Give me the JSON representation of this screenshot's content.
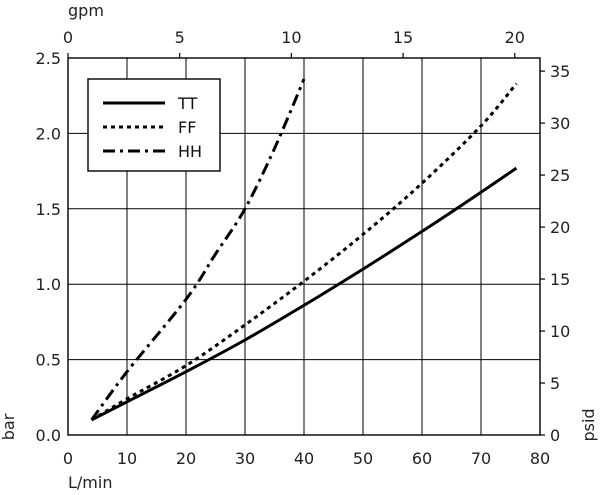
{
  "chart_data": {
    "type": "line",
    "x_bottom": {
      "label": "L/min",
      "ticks": [
        0,
        10,
        20,
        30,
        40,
        50,
        60,
        70,
        80
      ],
      "range": [
        0,
        80
      ]
    },
    "x_top": {
      "label": "gpm",
      "ticks": [
        0,
        5,
        10,
        15,
        20
      ],
      "range": [
        0,
        21.13
      ]
    },
    "y_left": {
      "label": "bar",
      "ticks": [
        "0.0",
        "0.5",
        "1.0",
        "1.5",
        "2.0",
        "2.5"
      ],
      "range": [
        0,
        2.5
      ]
    },
    "y_right": {
      "label": "psid",
      "ticks": [
        0,
        5,
        10,
        15,
        20,
        25,
        30,
        35
      ],
      "range": [
        0,
        36.26
      ]
    },
    "grid": true,
    "legend_position": "top-left",
    "series": [
      {
        "name": "TT",
        "style": "solid",
        "x": [
          4,
          10,
          20,
          30,
          40,
          50,
          60,
          70,
          76
        ],
        "y": [
          0.1,
          0.22,
          0.42,
          0.63,
          0.86,
          1.1,
          1.35,
          1.61,
          1.77
        ]
      },
      {
        "name": "FF",
        "style": "dotted",
        "x": [
          4,
          10,
          20,
          30,
          40,
          50,
          60,
          70,
          76
        ],
        "y": [
          0.1,
          0.24,
          0.46,
          0.73,
          1.02,
          1.33,
          1.67,
          2.05,
          2.33
        ]
      },
      {
        "name": "HH",
        "style": "dashdot",
        "x": [
          4,
          10,
          20,
          25,
          30,
          35,
          40
        ],
        "y": [
          0.1,
          0.42,
          0.9,
          1.2,
          1.5,
          1.9,
          2.36
        ]
      }
    ]
  }
}
